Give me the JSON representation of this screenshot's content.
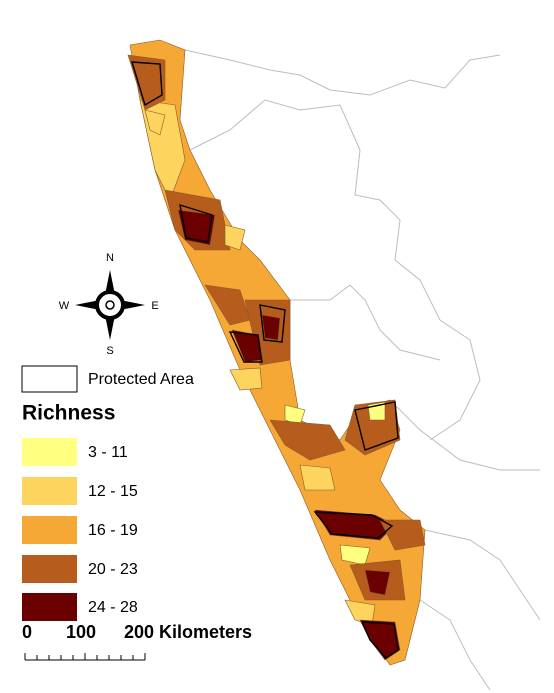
{
  "compass": {
    "north": "N",
    "west": "W",
    "east": "E",
    "south": "S"
  },
  "legend": {
    "protected_area": "Protected Area",
    "title": "Richness",
    "classes": [
      {
        "label": "3 - 11",
        "color": "#ffff80"
      },
      {
        "label": "12 - 15",
        "color": "#fdd45e"
      },
      {
        "label": "16 - 19",
        "color": "#f5a836"
      },
      {
        "label": "20 - 23",
        "color": "#b65d1e"
      },
      {
        "label": "24 - 28",
        "color": "#6b0000"
      }
    ]
  },
  "scale_bar": {
    "labels": [
      "0",
      "100",
      "200 Kilometers"
    ]
  }
}
